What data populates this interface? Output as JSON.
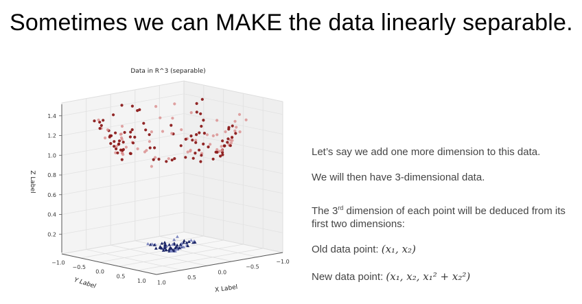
{
  "slide": {
    "title": "Sometimes we can MAKE the data linearly separable."
  },
  "chart_data": {
    "type": "scatter",
    "projection": "3d",
    "title": "Data in R^3 (separable)",
    "xlabel": "X Label",
    "ylabel": "Y Label",
    "zlabel": "Z Label",
    "xlim": [
      -1.0,
      1.0
    ],
    "ylim": [
      -1.0,
      1.0
    ],
    "zlim": [
      0.0,
      1.5
    ],
    "x_ticks": [
      "1.0",
      "0.5",
      "0.0",
      "−0.5",
      "−1.0"
    ],
    "y_ticks": [
      "−1.0",
      "−0.5",
      "0.0",
      "0.5",
      "1.0"
    ],
    "z_ticks": [
      "1.4",
      "1.2",
      "1.0",
      "0.8",
      "0.6",
      "0.4",
      "0.2"
    ],
    "grid": true,
    "series": [
      {
        "marker": "circle",
        "color": "#8b1a1a",
        "z_range": [
          0.8,
          1.4
        ]
      },
      {
        "marker": "triangle",
        "color": "#1a2466",
        "z_range": [
          0.0,
          0.2
        ]
      }
    ]
  },
  "bullets": [
    {
      "text": "Let’s say we add one more dimension to this data."
    },
    {
      "text": "We will then have 3-dimensional data."
    },
    {
      "text": "The 3",
      "sup": "rd",
      "text2": " dimension of each point will be deduced from its first two dimensions:"
    },
    {
      "text": "Old data point: ",
      "math": "(x₁, x₂)"
    },
    {
      "text": "New data point: ",
      "math": "(x₁, x₂, x₁² + x₂²)"
    }
  ]
}
